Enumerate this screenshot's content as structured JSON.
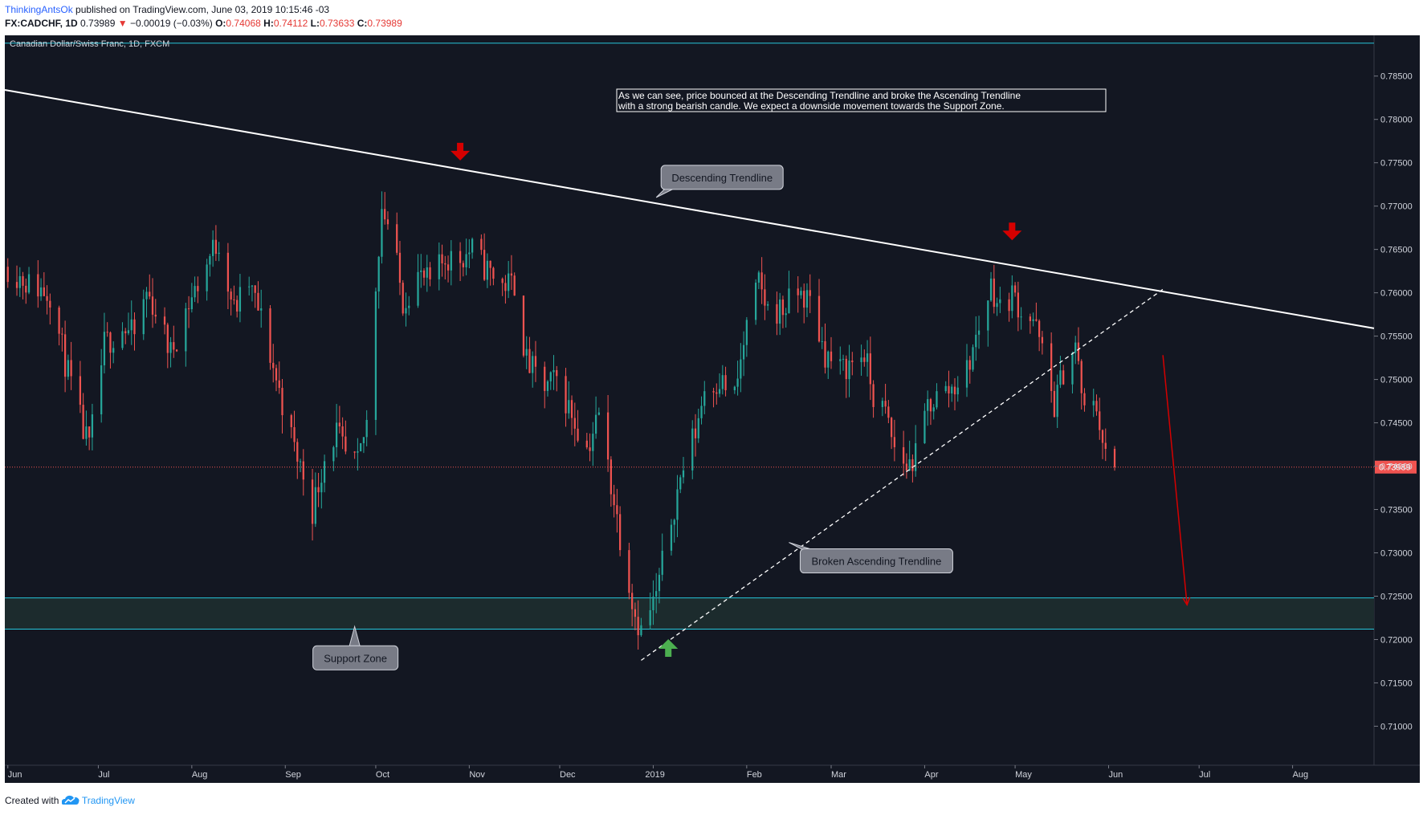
{
  "header": {
    "author": "ThinkingAntsOk",
    "published": "published on TradingView.com, June 03, 2019 10:15:46 -03",
    "symbol": "FX:CADCHF, 1D",
    "last": "0.73989",
    "change_arrow": "▼",
    "change": "−0.00019 (−0.03%)",
    "o_label": "O:",
    "o_value": "0.74068",
    "h_label": "H:",
    "h_value": "0.74112",
    "l_label": "L:",
    "l_value": "0.73633",
    "c_label": "C:",
    "c_value": "0.73989"
  },
  "footer": {
    "created_with": "Created with",
    "brand": "TradingView",
    "logo_icon": "tradingview-cloud-icon"
  },
  "colors": {
    "background": "#131722",
    "bull": "#26a69a",
    "bear": "#ef5350",
    "trendline": "#ffffff",
    "support_line": "#26c6da",
    "signal_arrow": "#d50000",
    "bounce_arrow": "#4caf50",
    "price_label_bg": "#ef5350"
  },
  "chart_data": {
    "type": "candlestick",
    "title": "Canadian Dollar/Swiss Franc, 1D, FXCM",
    "interval": "1D",
    "ylim": [
      0.7055,
      0.7897
    ],
    "x_range": [
      "2018-05-31",
      "2019-08-28"
    ],
    "y_ticks": [
      "0.71000",
      "0.71500",
      "0.72000",
      "0.72500",
      "0.73000",
      "0.73500",
      "0.74000",
      "0.74500",
      "0.75000",
      "0.75500",
      "0.76000",
      "0.76500",
      "0.77000",
      "0.77500",
      "0.78000",
      "0.78500"
    ],
    "x_ticks": [
      {
        "date": "2018-06-01",
        "label": "Jun"
      },
      {
        "date": "2018-07-01",
        "label": "Jul"
      },
      {
        "date": "2018-08-01",
        "label": "Aug"
      },
      {
        "date": "2018-09-01",
        "label": "Sep"
      },
      {
        "date": "2018-10-01",
        "label": "Oct"
      },
      {
        "date": "2018-11-01",
        "label": "Nov"
      },
      {
        "date": "2018-12-01",
        "label": "Dec"
      },
      {
        "date": "2019-01-01",
        "label": "2019"
      },
      {
        "date": "2019-02-01",
        "label": "Feb"
      },
      {
        "date": "2019-03-01",
        "label": "Mar"
      },
      {
        "date": "2019-04-01",
        "label": "Apr"
      },
      {
        "date": "2019-05-01",
        "label": "May"
      },
      {
        "date": "2019-06-01",
        "label": "Jun"
      },
      {
        "date": "2019-07-01",
        "label": "Jul"
      },
      {
        "date": "2019-08-01",
        "label": "Aug"
      }
    ],
    "last_price": 0.73989,
    "last_price_label": "0.73989",
    "top_line": 0.7888,
    "close_path": [
      [
        "2018-06-01",
        0.763
      ],
      [
        "2018-06-08",
        0.761
      ],
      [
        "2018-06-15",
        0.76
      ],
      [
        "2018-06-20",
        0.752
      ],
      [
        "2018-06-26",
        0.744
      ],
      [
        "2018-06-28",
        0.742
      ],
      [
        "2018-07-03",
        0.754
      ],
      [
        "2018-07-09",
        0.756
      ],
      [
        "2018-07-13",
        0.755
      ],
      [
        "2018-07-17",
        0.76
      ],
      [
        "2018-07-20",
        0.758
      ],
      [
        "2018-07-25",
        0.753
      ],
      [
        "2018-07-30",
        0.758
      ],
      [
        "2018-08-03",
        0.761
      ],
      [
        "2018-08-08",
        0.765
      ],
      [
        "2018-08-10",
        0.766
      ],
      [
        "2018-08-15",
        0.758
      ],
      [
        "2018-08-20",
        0.761
      ],
      [
        "2018-08-24",
        0.757
      ],
      [
        "2018-08-29",
        0.75
      ],
      [
        "2018-09-04",
        0.742
      ],
      [
        "2018-09-07",
        0.739
      ],
      [
        "2018-09-10",
        0.735
      ],
      [
        "2018-09-14",
        0.741
      ],
      [
        "2018-09-18",
        0.744
      ],
      [
        "2018-09-21",
        0.741
      ],
      [
        "2018-09-25",
        0.74
      ],
      [
        "2018-09-28",
        0.745
      ],
      [
        "2018-10-01",
        0.761
      ],
      [
        "2018-10-03",
        0.77
      ],
      [
        "2018-10-06",
        0.767
      ],
      [
        "2018-10-10",
        0.759
      ],
      [
        "2018-10-15",
        0.762
      ],
      [
        "2018-10-19",
        0.761
      ],
      [
        "2018-10-24",
        0.764
      ],
      [
        "2018-10-29",
        0.764
      ],
      [
        "2018-11-02",
        0.765
      ],
      [
        "2018-11-06",
        0.763
      ],
      [
        "2018-11-12",
        0.761
      ],
      [
        "2018-11-16",
        0.761
      ],
      [
        "2018-11-20",
        0.752
      ],
      [
        "2018-11-26",
        0.749
      ],
      [
        "2018-11-30",
        0.75
      ],
      [
        "2018-12-05",
        0.746
      ],
      [
        "2018-12-10",
        0.742
      ],
      [
        "2018-12-14",
        0.746
      ],
      [
        "2018-12-18",
        0.738
      ],
      [
        "2018-12-21",
        0.732
      ],
      [
        "2018-12-26",
        0.723
      ],
      [
        "2018-12-28",
        0.721
      ],
      [
        "2019-01-02",
        0.725
      ],
      [
        "2019-01-07",
        0.734
      ],
      [
        "2019-01-11",
        0.74
      ],
      [
        "2019-01-15",
        0.744
      ],
      [
        "2019-01-18",
        0.749
      ],
      [
        "2019-01-23",
        0.75
      ],
      [
        "2019-01-28",
        0.748
      ],
      [
        "2019-02-01",
        0.756
      ],
      [
        "2019-02-05",
        0.761
      ],
      [
        "2019-02-08",
        0.758
      ],
      [
        "2019-02-13",
        0.758
      ],
      [
        "2019-02-18",
        0.76
      ],
      [
        "2019-02-22",
        0.759
      ],
      [
        "2019-02-27",
        0.753
      ],
      [
        "2019-03-04",
        0.751
      ],
      [
        "2019-03-08",
        0.752
      ],
      [
        "2019-03-12",
        0.753
      ],
      [
        "2019-03-15",
        0.748
      ],
      [
        "2019-03-19",
        0.746
      ],
      [
        "2019-03-22",
        0.742
      ],
      [
        "2019-03-26",
        0.74
      ],
      [
        "2019-03-29",
        0.741
      ],
      [
        "2019-04-02",
        0.747
      ],
      [
        "2019-04-05",
        0.748
      ],
      [
        "2019-04-10",
        0.749
      ],
      [
        "2019-04-15",
        0.751
      ],
      [
        "2019-04-19",
        0.756
      ],
      [
        "2019-04-23",
        0.761
      ],
      [
        "2019-04-26",
        0.758
      ],
      [
        "2019-04-30",
        0.76
      ],
      [
        "2019-05-03",
        0.758
      ],
      [
        "2019-05-07",
        0.757
      ],
      [
        "2019-05-10",
        0.753
      ],
      [
        "2019-05-14",
        0.747
      ],
      [
        "2019-05-17",
        0.751
      ],
      [
        "2019-05-21",
        0.754
      ],
      [
        "2019-05-24",
        0.746
      ],
      [
        "2019-05-28",
        0.747
      ],
      [
        "2019-05-31",
        0.741
      ],
      [
        "2019-06-03",
        0.7399
      ]
    ],
    "trendlines": [
      {
        "kind": "descending",
        "style": "solid",
        "from": [
          "2018-05-31",
          0.7834
        ],
        "to": [
          "2019-08-28",
          0.7559
        ]
      },
      {
        "kind": "ascending",
        "style": "dashed",
        "from": [
          "2018-12-28",
          0.7176
        ],
        "to": [
          "2019-06-19",
          0.7604
        ]
      }
    ],
    "support_zone": {
      "from": 0.7212,
      "to": 0.7248
    },
    "projection": {
      "from": [
        "2019-06-19",
        0.7528
      ],
      "to": [
        "2019-06-27",
        0.724
      ]
    },
    "annotations": [
      {
        "type": "arrow-down",
        "date": "2018-10-29",
        "value": 0.776
      },
      {
        "type": "arrow-down",
        "date": "2019-04-30",
        "value": 0.7668
      },
      {
        "type": "arrow-up",
        "date": "2019-01-06",
        "value": 0.7193
      }
    ],
    "callouts": [
      {
        "text": "Descending Trendline",
        "anchor_date": "2019-01-02",
        "anchor_value": 0.771
      },
      {
        "text": "Broken Ascending Trendline",
        "anchor_date": "2019-02-15",
        "anchor_value": 0.7312
      },
      {
        "text": "Support Zone",
        "anchor_date": "2018-09-24",
        "anchor_value": 0.7215
      }
    ],
    "note": "As we can see, price bounced at the Descending Trendline and broke the Ascending Trendline with a strong bearish candle. We expect a downside movement towards the Support Zone."
  }
}
